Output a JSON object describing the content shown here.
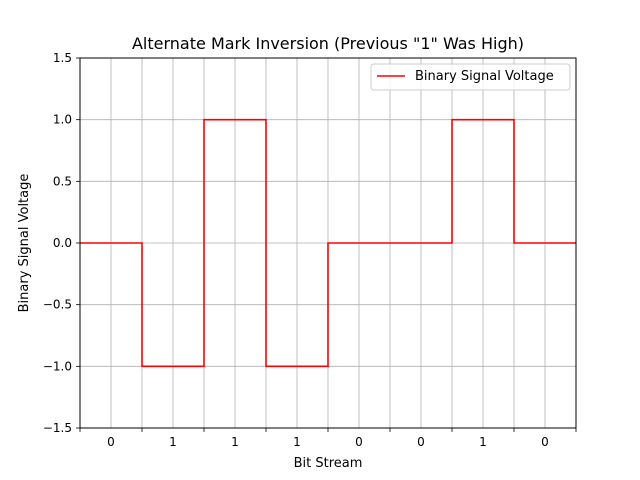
{
  "chart_data": {
    "type": "line",
    "title": "Alternate Mark Inversion (Previous \"1\" Was High)",
    "xlabel": "Bit Stream",
    "ylabel": "Binary Signal Voltage",
    "bits": [
      "0",
      "1",
      "1",
      "1",
      "0",
      "0",
      "1",
      "0"
    ],
    "xlim": [
      0,
      8
    ],
    "ylim": [
      -1.5,
      1.5
    ],
    "yticks": [
      -1.5,
      -1.0,
      -0.5,
      0.0,
      0.5,
      1.0,
      1.5
    ],
    "ytick_labels": [
      "−1.5",
      "−1.0",
      "−0.5",
      "0.0",
      "0.5",
      "1.0",
      "1.5"
    ],
    "grid": true,
    "legend_position": "top-right",
    "series": [
      {
        "name": "Binary Signal Voltage",
        "color": "#ff0000",
        "step": "post",
        "x": [
          0,
          1,
          2,
          3,
          4,
          5,
          6,
          7,
          8
        ],
        "values": [
          0,
          -1,
          1,
          -1,
          0,
          0,
          1,
          0,
          0
        ]
      }
    ]
  }
}
